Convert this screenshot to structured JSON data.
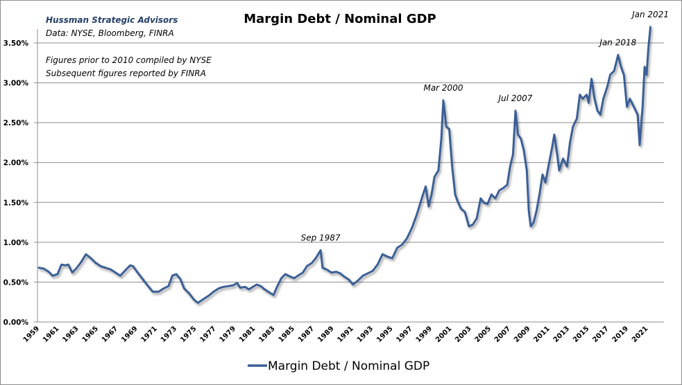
{
  "chart_data": {
    "type": "line",
    "title": "Margin Debt / Nominal GDP",
    "xlabel": "",
    "ylabel": "",
    "ylim": [
      0,
      3.5
    ],
    "yticks": [
      "0.00%",
      "0.50%",
      "1.00%",
      "1.50%",
      "2.00%",
      "2.50%",
      "3.00%",
      "3.50%"
    ],
    "ytick_values": [
      0,
      0.5,
      1.0,
      1.5,
      2.0,
      2.5,
      3.0,
      3.5
    ],
    "xlim": [
      1959,
      2021.4
    ],
    "xticks": [
      "1959",
      "1961",
      "1963",
      "1965",
      "1967",
      "1969",
      "1971",
      "1973",
      "1975",
      "1977",
      "1979",
      "1981",
      "1983",
      "1985",
      "1987",
      "1989",
      "1991",
      "1993",
      "1995",
      "1997",
      "1999",
      "2001",
      "2003",
      "2005",
      "2007",
      "2009",
      "2011",
      "2013",
      "2015",
      "2017",
      "2019",
      "2021"
    ],
    "grid": true,
    "legend": "bottom",
    "line_color": "#3a5f95",
    "series": [
      {
        "name": "Margin Debt / Nominal GDP",
        "x": [
          1959.0,
          1959.5,
          1960.0,
          1960.4,
          1960.9,
          1961.3,
          1961.7,
          1962.0,
          1962.4,
          1962.8,
          1963.3,
          1963.8,
          1964.3,
          1964.8,
          1965.3,
          1965.8,
          1966.3,
          1966.8,
          1967.3,
          1967.9,
          1968.3,
          1968.6,
          1969.0,
          1969.5,
          1970.0,
          1970.6,
          1971.2,
          1971.7,
          1972.2,
          1972.6,
          1973.0,
          1973.4,
          1973.8,
          1974.3,
          1974.8,
          1975.2,
          1975.8,
          1976.3,
          1976.8,
          1977.3,
          1977.8,
          1978.3,
          1978.8,
          1979.2,
          1979.5,
          1980.0,
          1980.4,
          1980.8,
          1981.2,
          1981.6,
          1982.0,
          1982.6,
          1982.9,
          1983.3,
          1983.7,
          1984.1,
          1984.6,
          1985.0,
          1985.5,
          1985.9,
          1986.3,
          1986.8,
          1987.2,
          1987.7,
          1987.9,
          1988.3,
          1988.8,
          1989.3,
          1989.7,
          1990.1,
          1990.6,
          1991.0,
          1991.5,
          1992.0,
          1992.5,
          1993.0,
          1993.5,
          1994.0,
          1994.5,
          1995.0,
          1995.5,
          1996.0,
          1996.5,
          1997.0,
          1997.5,
          1998.0,
          1998.4,
          1998.7,
          1999.0,
          1999.3,
          1999.7,
          2000.0,
          2000.2,
          2000.5,
          2000.8,
          2001.1,
          2001.4,
          2001.7,
          2002.0,
          2002.4,
          2002.8,
          2003.2,
          2003.6,
          2004.0,
          2004.3,
          2004.7,
          2005.1,
          2005.5,
          2005.9,
          2006.3,
          2006.7,
          2007.0,
          2007.3,
          2007.55,
          2007.8,
          2008.1,
          2008.4,
          2008.7,
          2008.9,
          2009.1,
          2009.4,
          2009.7,
          2010.0,
          2010.3,
          2010.6,
          2010.9,
          2011.3,
          2011.5,
          2011.8,
          2012.0,
          2012.4,
          2012.8,
          2013.1,
          2013.4,
          2013.8,
          2014.1,
          2014.4,
          2014.8,
          2015.0,
          2015.3,
          2015.6,
          2015.9,
          2016.2,
          2016.5,
          2016.9,
          2017.2,
          2017.6,
          2018.0,
          2018.3,
          2018.6,
          2018.9,
          2019.2,
          2019.6,
          2020.0,
          2020.2,
          2020.5,
          2020.7,
          2020.9,
          2021.1,
          2021.3
        ],
        "values": [
          0.68,
          0.67,
          0.63,
          0.58,
          0.6,
          0.72,
          0.71,
          0.72,
          0.62,
          0.67,
          0.75,
          0.85,
          0.8,
          0.74,
          0.7,
          0.68,
          0.66,
          0.62,
          0.58,
          0.66,
          0.71,
          0.7,
          0.63,
          0.55,
          0.47,
          0.38,
          0.38,
          0.42,
          0.45,
          0.58,
          0.6,
          0.54,
          0.42,
          0.36,
          0.28,
          0.24,
          0.29,
          0.33,
          0.38,
          0.42,
          0.44,
          0.45,
          0.46,
          0.49,
          0.43,
          0.44,
          0.41,
          0.44,
          0.47,
          0.45,
          0.41,
          0.36,
          0.34,
          0.45,
          0.55,
          0.6,
          0.57,
          0.55,
          0.59,
          0.62,
          0.7,
          0.74,
          0.8,
          0.9,
          0.68,
          0.66,
          0.62,
          0.63,
          0.61,
          0.57,
          0.53,
          0.47,
          0.52,
          0.58,
          0.61,
          0.64,
          0.72,
          0.85,
          0.82,
          0.8,
          0.93,
          0.97,
          1.05,
          1.18,
          1.35,
          1.55,
          1.7,
          1.45,
          1.6,
          1.82,
          1.9,
          2.3,
          2.78,
          2.45,
          2.42,
          1.95,
          1.6,
          1.5,
          1.42,
          1.38,
          1.2,
          1.22,
          1.3,
          1.55,
          1.5,
          1.48,
          1.6,
          1.55,
          1.65,
          1.68,
          1.72,
          1.95,
          2.1,
          2.65,
          2.35,
          2.3,
          2.15,
          1.9,
          1.4,
          1.2,
          1.25,
          1.4,
          1.6,
          1.85,
          1.75,
          1.95,
          2.2,
          2.35,
          2.1,
          1.9,
          2.05,
          1.95,
          2.25,
          2.45,
          2.55,
          2.85,
          2.8,
          2.85,
          2.75,
          3.05,
          2.8,
          2.65,
          2.6,
          2.8,
          2.95,
          3.1,
          3.15,
          3.35,
          3.2,
          3.1,
          2.7,
          2.8,
          2.7,
          2.6,
          2.22,
          2.7,
          3.2,
          3.1,
          3.45,
          3.7
        ]
      }
    ],
    "annotations": [
      {
        "text": "Sep 1987",
        "x": 1987.7,
        "y": 0.9
      },
      {
        "text": "Mar 2000",
        "x": 2000.2,
        "y": 2.78
      },
      {
        "text": "Jul 2007",
        "x": 2007.55,
        "y": 2.65
      },
      {
        "text": "Jan 2018",
        "x": 2018.0,
        "y": 3.35
      },
      {
        "text": "Jan 2021",
        "x": 2021.3,
        "y": 3.7
      }
    ]
  },
  "header": {
    "brand": "Hussman Strategic Advisors",
    "source": "Data: NYSE, Bloomberg, FINRA",
    "note_line1": "Figures prior to 2010 compiled by NYSE",
    "note_line2": "Subsequent figures reported by FINRA"
  }
}
